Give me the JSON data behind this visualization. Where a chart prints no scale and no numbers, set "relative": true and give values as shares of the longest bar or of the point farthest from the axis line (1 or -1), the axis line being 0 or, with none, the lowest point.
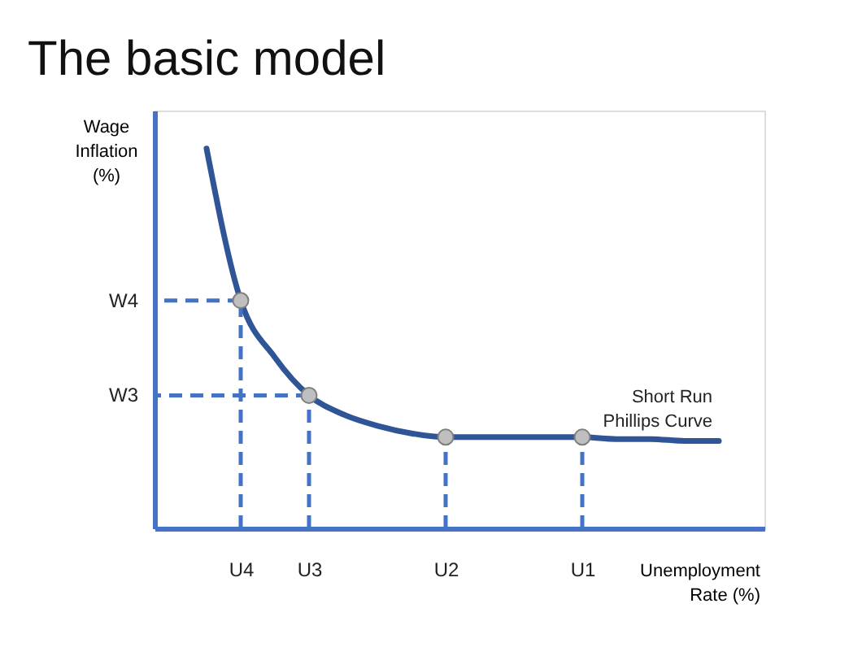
{
  "chart_data": {
    "type": "line",
    "title": "The basic model",
    "xlabel": "Unemployment Rate (%)",
    "ylabel": "Wage Inflation (%)",
    "relative": true,
    "categories": [
      null,
      "U4",
      null,
      "U3",
      null,
      null,
      null,
      "U2",
      null,
      null,
      null,
      "U1",
      null,
      null,
      null,
      null
    ],
    "annotations": [
      {
        "text": "W4",
        "x": "U4",
        "y": 0.6
      },
      {
        "text": "W3",
        "x": "U3",
        "y": 0.35
      }
    ],
    "series": [
      {
        "name": "Short Run Phillips Curve",
        "color": "#2f5597",
        "values": [
          1,
          0.6,
          0.45,
          0.35,
          0.3,
          0.27,
          0.25,
          0.24,
          0.24,
          0.24,
          0.24,
          0.24,
          0.235,
          0.235,
          0.23,
          0.23
        ]
      },
      {
        "type": "scatter",
        "color": "#bfbfbf",
        "values": [
          null,
          0.6,
          null,
          0.35,
          null,
          null,
          null,
          0.24,
          null,
          null,
          null,
          0.24,
          null,
          null,
          null,
          null
        ]
      }
    ]
  }
}
